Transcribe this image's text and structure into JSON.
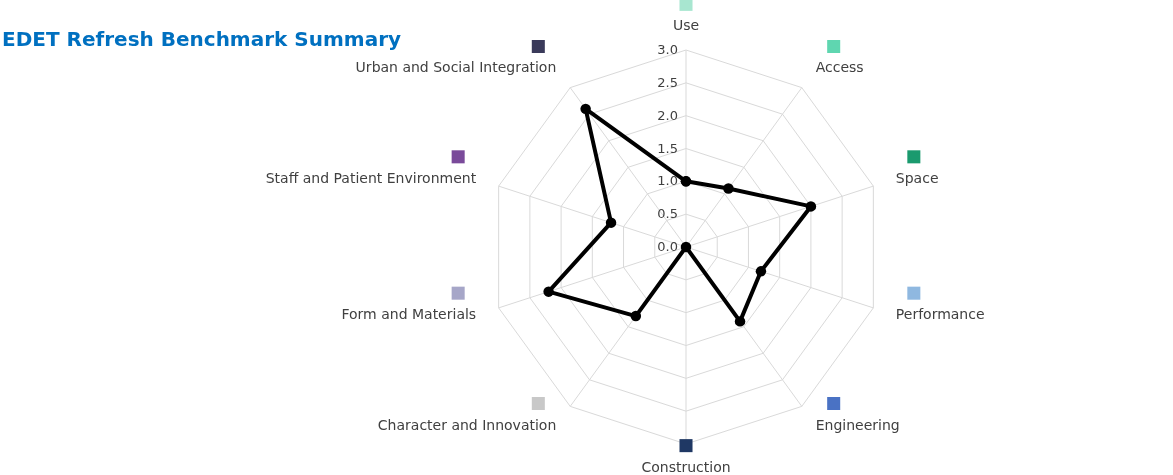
{
  "chart_data": {
    "type": "radar",
    "title": "EDET Refresh Benchmark Summary",
    "categories": [
      "Use",
      "Access",
      "Space",
      "Performance",
      "Engineering",
      "Construction",
      "Character and Innovation",
      "Form and Materials",
      "Staff and Patient Environment",
      "Urban and Social Integration"
    ],
    "colors": [
      "#a8e6d0",
      "#5fd6b0",
      "#1a9a6e",
      "#8fb8e0",
      "#4a72c4",
      "#1f3864",
      "#c8c8c8",
      "#a6a6c8",
      "#7a4a9a",
      "#3a3a5a"
    ],
    "series": [
      {
        "color": "#000000",
        "values": [
          1.0,
          1.1,
          2.0,
          1.2,
          1.4,
          0.0,
          1.3,
          2.2,
          1.2,
          2.6
        ]
      }
    ],
    "ylim": [
      0,
      3
    ],
    "yticks": [
      {
        "value": 0,
        "label": "0.0"
      },
      {
        "value": 0.5,
        "label": "0.5"
      },
      {
        "value": 1,
        "label": "1.0"
      },
      {
        "value": 1.5,
        "label": "1.5"
      },
      {
        "value": 2,
        "label": "2.0"
      },
      {
        "value": 2.5,
        "label": "2.5"
      },
      {
        "value": 3,
        "label": "3.0"
      }
    ],
    "grid": true,
    "marker": "circle",
    "line_style": "solid"
  }
}
